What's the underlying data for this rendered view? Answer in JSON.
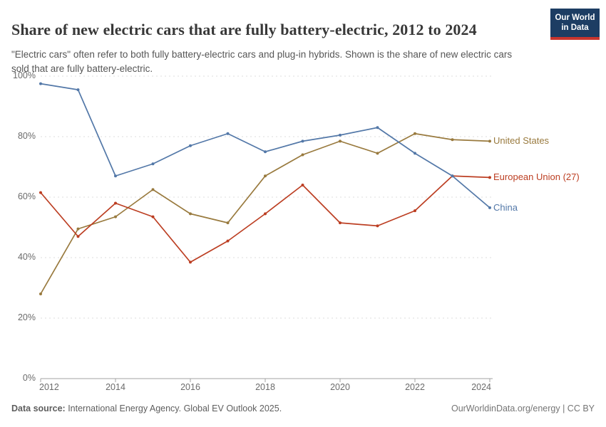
{
  "header": {
    "title": "Share of new electric cars that are fully battery-electric, 2012 to 2024",
    "subtitle": "\"Electric cars\" often refer to both fully battery-electric cars and plug-in hybrids. Shown is the share of new electric cars sold that are fully battery-electric.",
    "logo": {
      "line1": "Our World",
      "line2": "in Data",
      "bg_color": "#1d3d63",
      "accent_color": "#c9352e"
    }
  },
  "chart_data": {
    "type": "line",
    "title": "Share of new electric cars that are fully battery-electric, 2012 to 2024",
    "x": [
      2012,
      2013,
      2014,
      2015,
      2016,
      2017,
      2018,
      2019,
      2020,
      2021,
      2022,
      2023,
      2024
    ],
    "x_tick_values": [
      2012,
      2014,
      2016,
      2018,
      2020,
      2022,
      2024
    ],
    "x_tick_labels": [
      "2012",
      "2014",
      "2016",
      "2018",
      "2020",
      "2022",
      "2024"
    ],
    "y_tick_values": [
      0,
      20,
      40,
      60,
      80,
      100
    ],
    "y_tick_labels": [
      "0%",
      "20%",
      "40%",
      "60%",
      "80%",
      "100%"
    ],
    "ylim": [
      0,
      100
    ],
    "grid": "horizontal-dashed",
    "legend_position": "right-end-labels",
    "series": [
      {
        "name": "United States",
        "color": "#997a3e",
        "values": [
          28,
          49.5,
          53.5,
          62.5,
          54.5,
          51.5,
          67,
          74,
          78.5,
          74.5,
          81,
          79,
          78.5
        ]
      },
      {
        "name": "European Union (27)",
        "color": "#bc3e22",
        "values": [
          61.5,
          47,
          58,
          53.5,
          38.5,
          45.5,
          54.5,
          64,
          51.5,
          50.5,
          55.5,
          67,
          66.5
        ]
      },
      {
        "name": "China",
        "color": "#5378a8",
        "values": [
          97.5,
          95.5,
          67,
          71,
          77,
          81,
          75,
          78.5,
          80.5,
          83,
          74.5,
          67,
          56.5
        ]
      }
    ]
  },
  "footer": {
    "source_label": "Data source:",
    "source_text": " International Energy Agency. Global EV Outlook 2025.",
    "link": "OurWorldinData.org/energy",
    "separator": " | ",
    "license": "CC BY"
  }
}
